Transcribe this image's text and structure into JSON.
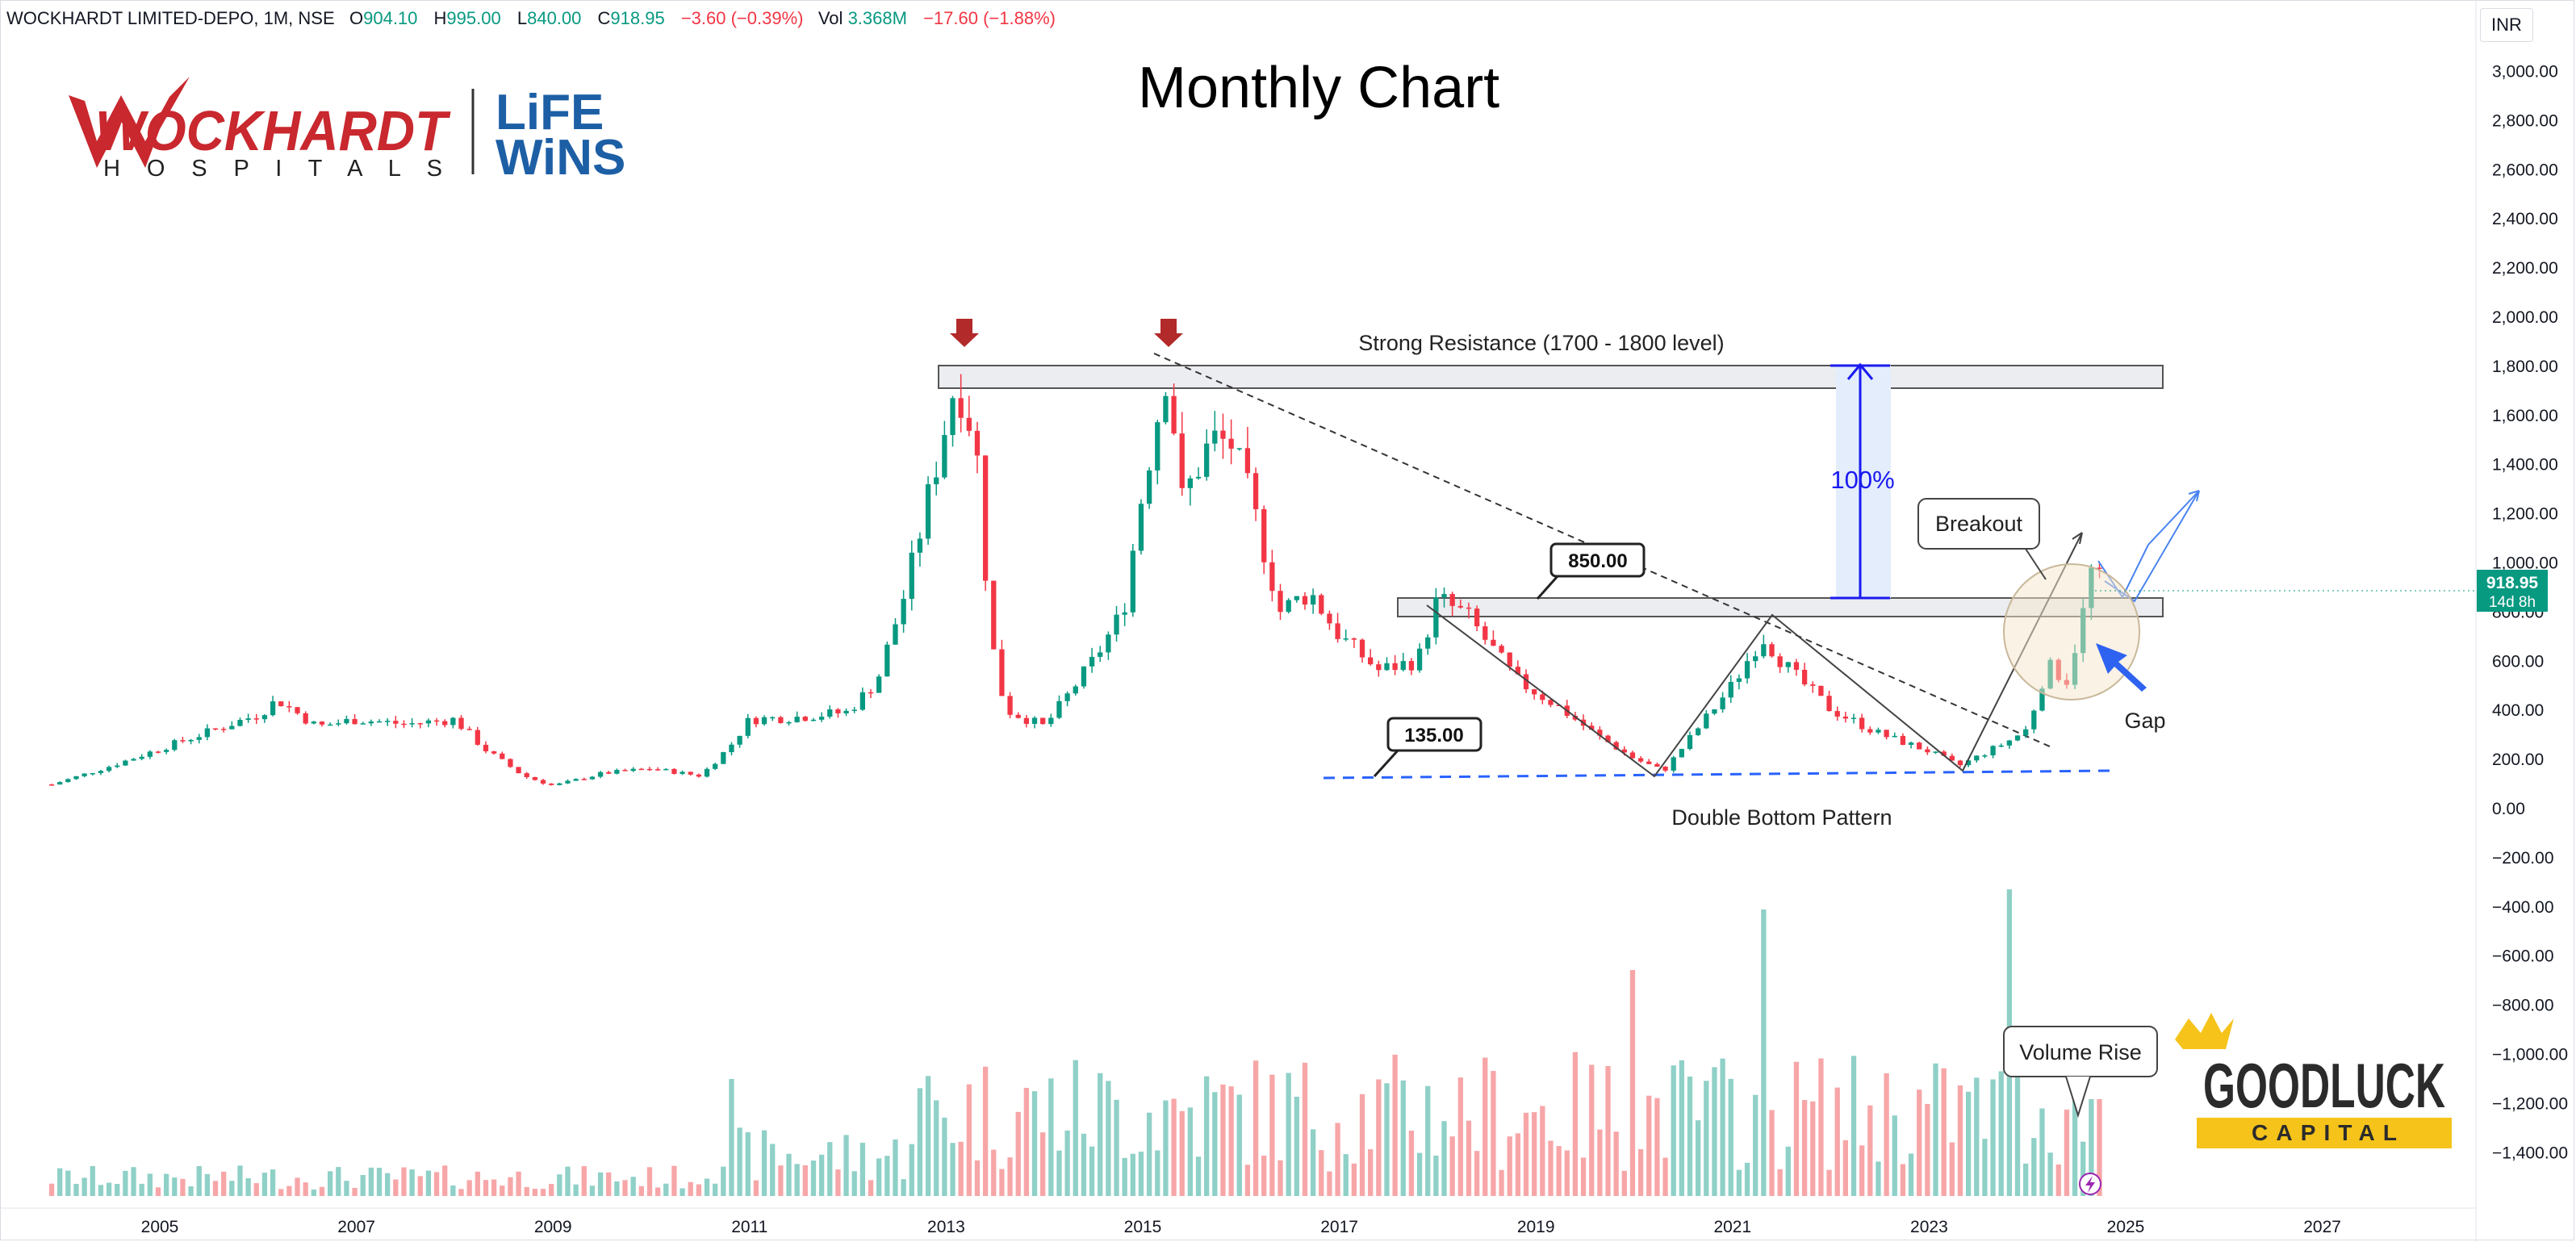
{
  "header": {
    "symbol": "WOCKHARDT LIMITED-DEPO, 1M, NSE",
    "open_label": "O",
    "open": "904.10",
    "high_label": "H",
    "high": "995.00",
    "low_label": "L",
    "low": "840.00",
    "close_label": "C",
    "close": "918.95",
    "change": "−3.60 (−0.39%)",
    "vol_label": "Vol",
    "vol": "3.368M",
    "vol_change": "−17.60 (−1.88%)"
  },
  "currency": "INR",
  "logos": {
    "wockhardt_main": "WOCKHARDT",
    "wockhardt_sub": "H O S P I T A L S",
    "lifewins_1": "LiFE",
    "lifewins_2": "WiNS",
    "goodluck_1": "GOODLUCK",
    "goodluck_2": "CAPITAL"
  },
  "colors": {
    "up": "#089981",
    "down": "#f23645",
    "vol_up": "#8fd0c7",
    "vol_down": "#f7a6a8",
    "measure": "#1a1af0",
    "arrow_blue": "#2e62f0",
    "dashed_support": "#2962ff",
    "red_marker": "#b22a2a",
    "price_tag_bg": "#089981",
    "goodluck_gold": "#f5c31a"
  },
  "chart_data": {
    "type": "candlestick",
    "title": "Monthly Chart",
    "x_axis_ticks": [
      "2005",
      "2007",
      "2009",
      "2011",
      "2013",
      "2015",
      "2017",
      "2019",
      "2021",
      "2023",
      "2025",
      "2027"
    ],
    "y_axis_ticks": [
      "3,000.00",
      "2,800.00",
      "2,600.00",
      "2,400.00",
      "2,200.00",
      "2,000.00",
      "1,800.00",
      "1,600.00",
      "1,400.00",
      "1,200.00",
      "1,000.00",
      "800.00",
      "600.00",
      "400.00",
      "200.00",
      "0.00",
      "−200.00",
      "−400.00",
      "−600.00",
      "−800.00",
      "−1,000.00",
      "−1,200.00",
      "−1,400.00"
    ],
    "ylim": [
      -1500,
      3100
    ],
    "xlim": [
      2003.9,
      2028.3
    ],
    "price_path": [
      [
        2003.9,
        95
      ],
      [
        2004.5,
        170
      ],
      [
        2005.0,
        240
      ],
      [
        2005.5,
        310
      ],
      [
        2006.0,
        380
      ],
      [
        2006.2,
        440
      ],
      [
        2006.6,
        330
      ],
      [
        2007.0,
        360
      ],
      [
        2007.5,
        340
      ],
      [
        2008.0,
        360
      ],
      [
        2008.3,
        240
      ],
      [
        2008.7,
        130
      ],
      [
        2009.0,
        90
      ],
      [
        2009.5,
        140
      ],
      [
        2010.0,
        160
      ],
      [
        2010.5,
        130
      ],
      [
        2010.8,
        250
      ],
      [
        2011.0,
        360
      ],
      [
        2011.5,
        370
      ],
      [
        2012.0,
        390
      ],
      [
        2012.3,
        520
      ],
      [
        2012.6,
        900
      ],
      [
        2012.9,
        1400
      ],
      [
        2013.1,
        1750
      ],
      [
        2013.3,
        1500
      ],
      [
        2013.45,
        700
      ],
      [
        2013.6,
        400
      ],
      [
        2014.0,
        330
      ],
      [
        2014.5,
        600
      ],
      [
        2014.8,
        800
      ],
      [
        2015.0,
        1300
      ],
      [
        2015.25,
        1800
      ],
      [
        2015.4,
        1250
      ],
      [
        2015.7,
        1500
      ],
      [
        2015.9,
        1480
      ],
      [
        2016.1,
        1250
      ],
      [
        2016.4,
        800
      ],
      [
        2016.7,
        880
      ],
      [
        2017.0,
        700
      ],
      [
        2017.4,
        560
      ],
      [
        2017.8,
        600
      ],
      [
        2018.0,
        850
      ],
      [
        2018.3,
        780
      ],
      [
        2018.8,
        520
      ],
      [
        2019.2,
        420
      ],
      [
        2019.6,
        300
      ],
      [
        2020.0,
        200
      ],
      [
        2020.3,
        150
      ],
      [
        2020.6,
        300
      ],
      [
        2021.0,
        500
      ],
      [
        2021.3,
        700
      ],
      [
        2021.6,
        550
      ],
      [
        2022.0,
        400
      ],
      [
        2022.5,
        300
      ],
      [
        2023.0,
        230
      ],
      [
        2023.3,
        170
      ],
      [
        2023.5,
        210
      ],
      [
        2023.8,
        270
      ],
      [
        2024.0,
        320
      ],
      [
        2024.2,
        580
      ],
      [
        2024.4,
        520
      ],
      [
        2024.55,
        760
      ],
      [
        2024.65,
        960
      ],
      [
        2024.75,
        919
      ]
    ],
    "current_price": {
      "value": "918.95",
      "countdown": "14d 8h"
    },
    "volume_note": "Volume histogram in lower pane; tallest bars near 2021.3 and 2023.8",
    "annotations": {
      "resistance_label": "Strong Resistance (1700 - 1800 level)",
      "resistance_zone": [
        1700,
        1800
      ],
      "level_850": "850.00",
      "level_135": "135.00",
      "measure_pct": "100%",
      "breakout": "Breakout",
      "gap": "Gap",
      "double_bottom": "Double Bottom Pattern",
      "volume_rise": "Volume Rise"
    }
  }
}
